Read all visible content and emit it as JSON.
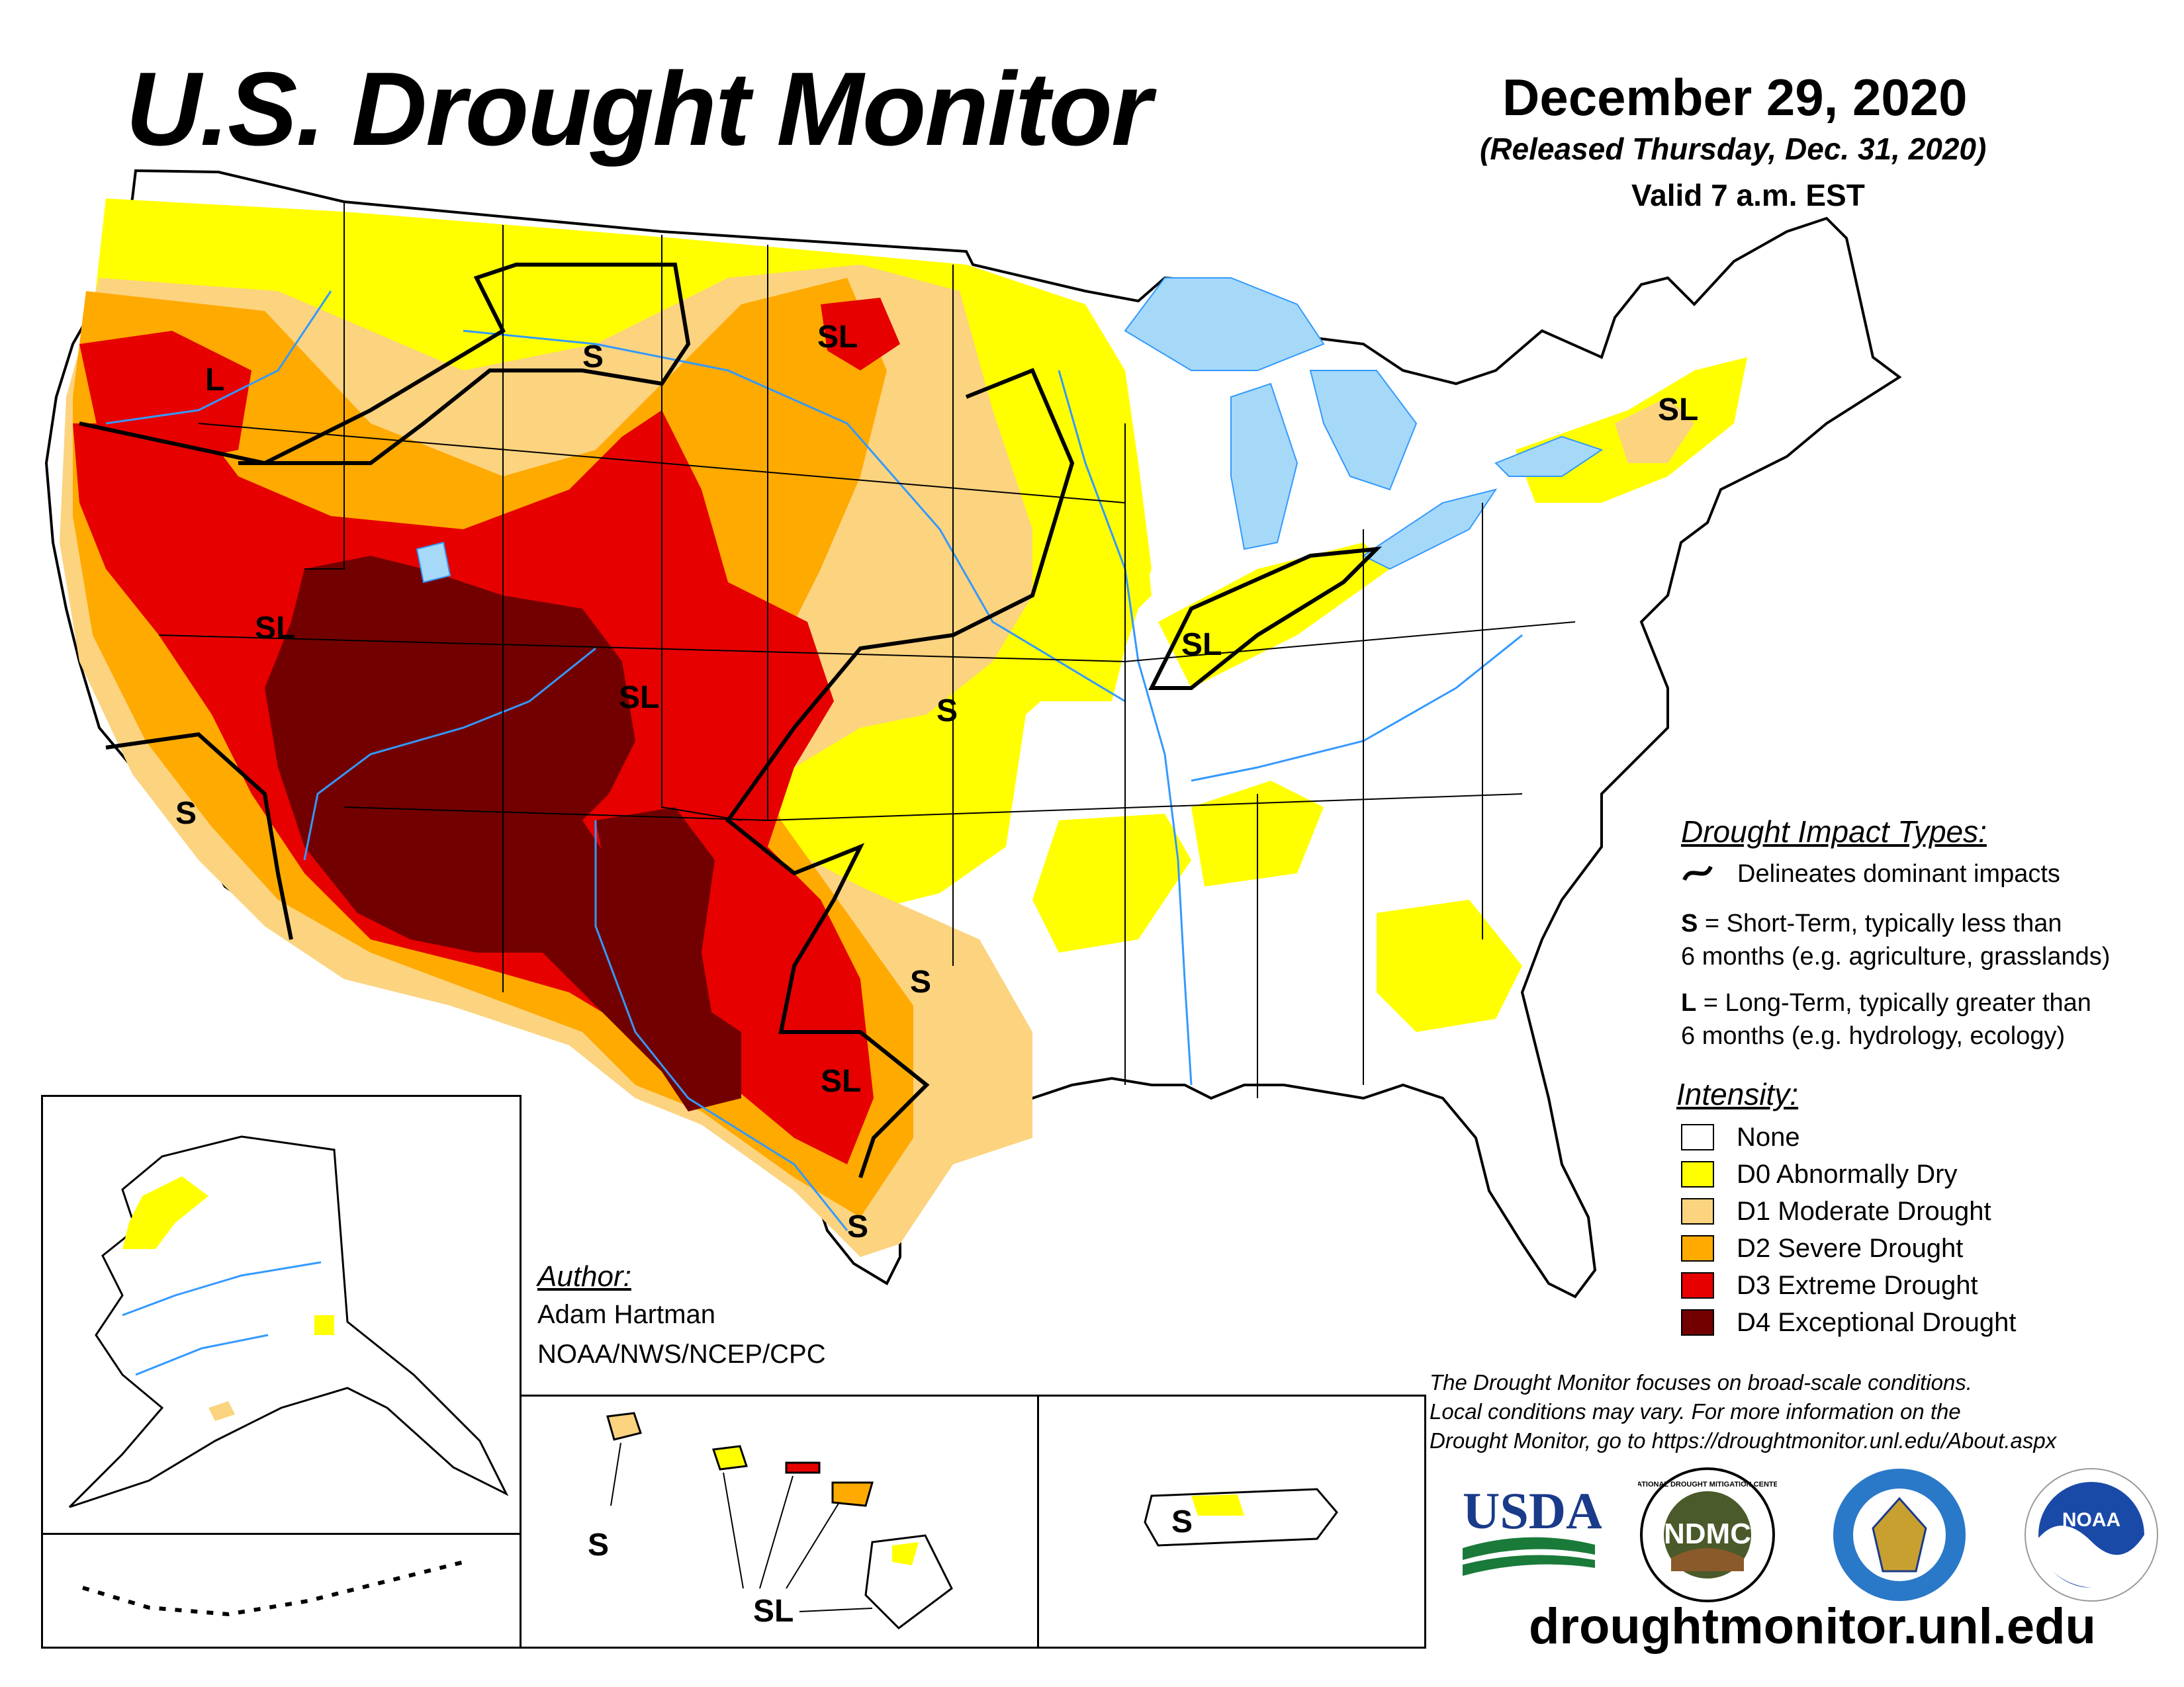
{
  "header": {
    "title": "U.S. Drought Monitor",
    "date": "December 29, 2020",
    "released": "(Released Thursday, Dec. 31, 2020)",
    "valid": "Valid 7 a.m. EST"
  },
  "map_labels": {
    "wa_l": "L",
    "mt_s": "S",
    "nd_sl": "SL",
    "ne_sl": "SL",
    "nv_sl": "SL",
    "co_sl": "SL",
    "ks_s": "S",
    "ca_s": "S",
    "oh_sl": "SL",
    "tx_s": "S",
    "tx_sl": "SL",
    "tx_s2": "S",
    "hi_s": "S",
    "hi_sl": "SL",
    "pr_s": "S"
  },
  "author": {
    "heading": "Author:",
    "name": "Adam Hartman",
    "org": "NOAA/NWS/NCEP/CPC"
  },
  "impacts": {
    "heading": "Drought Impact Types:",
    "delineates": "Delineates dominant impacts",
    "s_key": "S",
    "s_line1": " = Short-Term, typically less than",
    "s_line2": "6 months (e.g. agriculture, grasslands)",
    "l_key": "L",
    "l_line1": " = Long-Term, typically greater than",
    "l_line2": "6 months (e.g. hydrology, ecology)"
  },
  "intensity": {
    "heading": "Intensity:",
    "levels": [
      {
        "label": "None",
        "color": "#ffffff"
      },
      {
        "label": "D0 Abnormally Dry",
        "color": "#ffff00"
      },
      {
        "label": "D1 Moderate Drought",
        "color": "#fcd37f"
      },
      {
        "label": "D2 Severe Drought",
        "color": "#ffaa00"
      },
      {
        "label": "D3 Extreme Drought",
        "color": "#e60000"
      },
      {
        "label": "D4 Exceptional Drought",
        "color": "#730000"
      }
    ]
  },
  "note": {
    "line1": "The Drought Monitor focuses on broad-scale conditions.",
    "line2": "Local conditions may vary. For more information on the",
    "line3": "Drought Monitor, go to https://droughtmonitor.unl.edu/About.aspx"
  },
  "logos": {
    "usda": "USDA",
    "ndmc": "NDMC",
    "ndmc_ring": "NATIONAL DROUGHT MITIGATION CENTER",
    "noaa": "NOAA"
  },
  "url": "droughtmonitor.unl.edu",
  "colors": {
    "water": "#a6d9f7",
    "river": "#3399ff"
  }
}
